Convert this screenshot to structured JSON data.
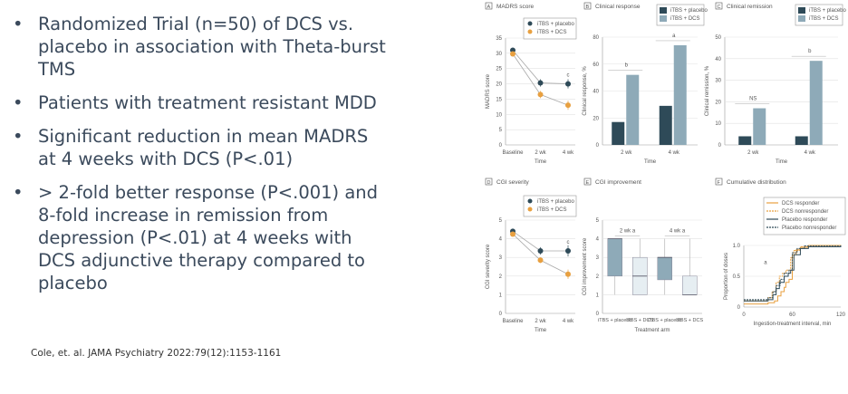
{
  "slide": {
    "bullets": [
      "Randomized Trial (n=50) of DCS vs. placebo in association with Theta-burst TMS",
      "Patients with treatment resistant MDD",
      "Significant reduction in mean MADRS at 4 weeks with DCS (P<.01)",
      "> 2-fold better response (P<.001) and 8-fold increase in remission from depression (P<.01) at 4 weeks with DCS adjunctive therapy compared to placebo"
    ],
    "bullet_glyph": "•",
    "citation": "Cole, et. al. JAMA Psychiatry 2022:79(12):1153-1161"
  },
  "colors": {
    "text": "#3b4a5c",
    "placebo": "#2e4a58",
    "dcs_orange": "#e8a040",
    "dcs_bar": "#8eaab8",
    "dcs_box": "#e6eef2"
  },
  "chart_data": [
    {
      "id": "A",
      "type": "line",
      "panel": "A",
      "title": "MADRS score",
      "xlabel": "Time",
      "ylabel": "MADRS score",
      "ylim": [
        0,
        35
      ],
      "yticks": [
        0,
        5,
        10,
        15,
        20,
        25,
        30,
        35
      ],
      "categories": [
        "Baseline",
        "2 wk",
        "4 wk"
      ],
      "series": [
        {
          "name": "iTBS + placebo",
          "values": [
            31,
            20.3,
            20
          ],
          "err": [
            0.8,
            1.2,
            1.5
          ]
        },
        {
          "name": "iTBS + DCS",
          "values": [
            29.8,
            16.5,
            13
          ],
          "err": [
            0.8,
            1.2,
            1.5
          ]
        }
      ],
      "annotations": [
        {
          "text": "c",
          "category": "4 wk"
        }
      ]
    },
    {
      "id": "B",
      "type": "bar",
      "panel": "B",
      "title": "Clinical response",
      "xlabel": "Time",
      "ylabel": "Clinical response, %",
      "ylim": [
        0,
        80
      ],
      "yticks": [
        0,
        20,
        40,
        60,
        80
      ],
      "categories": [
        "2 wk",
        "4 wk"
      ],
      "series": [
        {
          "name": "iTBS + placebo",
          "values": [
            17,
            29
          ]
        },
        {
          "name": "iTBS + DCS",
          "values": [
            52,
            74
          ]
        }
      ],
      "annotations": [
        {
          "text": "b",
          "category": "2 wk"
        },
        {
          "text": "a",
          "category": "4 wk"
        }
      ]
    },
    {
      "id": "C",
      "type": "bar",
      "panel": "C",
      "title": "Clinical remission",
      "xlabel": "Time",
      "ylabel": "Clinical remission, %",
      "ylim": [
        0,
        50
      ],
      "yticks": [
        0,
        10,
        20,
        30,
        40,
        50
      ],
      "categories": [
        "2 wk",
        "4 wk"
      ],
      "series": [
        {
          "name": "iTBS + placebo",
          "values": [
            4,
            4
          ]
        },
        {
          "name": "iTBS + DCS",
          "values": [
            17,
            39
          ]
        }
      ],
      "annotations": [
        {
          "text": "NS",
          "category": "2 wk"
        },
        {
          "text": "b",
          "category": "4 wk"
        }
      ]
    },
    {
      "id": "D",
      "type": "line",
      "panel": "D",
      "title": "CGI severity",
      "xlabel": "Time",
      "ylabel": "CGI severity score",
      "ylim": [
        0,
        5
      ],
      "yticks": [
        0,
        1,
        2,
        3,
        4,
        5
      ],
      "categories": [
        "Baseline",
        "2 wk",
        "4 wk"
      ],
      "series": [
        {
          "name": "iTBS + placebo",
          "values": [
            4.4,
            3.35,
            3.35
          ],
          "err": [
            0.1,
            0.2,
            0.3
          ]
        },
        {
          "name": "iTBS + DCS",
          "values": [
            4.25,
            2.85,
            2.1
          ],
          "err": [
            0.1,
            0.15,
            0.25
          ]
        }
      ],
      "annotations": [
        {
          "text": "c",
          "category": "4 wk"
        }
      ]
    },
    {
      "id": "E",
      "type": "box",
      "panel": "E",
      "title": "CGI improvement",
      "xlabel": "Treatment arm",
      "ylabel": "CGI improvement score",
      "ylim": [
        0,
        5
      ],
      "yticks": [
        0,
        1,
        2,
        3,
        4,
        5
      ],
      "categories": [
        "iTBS + placebo",
        "iTBS + DCS",
        "iTBS + placebo",
        "iTBS + DCS"
      ],
      "groups": [
        "2 wk",
        "4 wk"
      ],
      "group_marks": [
        "a",
        "a"
      ],
      "boxes": [
        {
          "min": 1,
          "q1": 2,
          "median": 4,
          "q3": 4,
          "max": 4,
          "arm": "placebo"
        },
        {
          "min": 1,
          "q1": 1,
          "median": 2,
          "q3": 3,
          "max": 4,
          "arm": "dcs"
        },
        {
          "min": 1,
          "q1": 1.8,
          "median": 3,
          "q3": 3,
          "max": 4,
          "arm": "placebo"
        },
        {
          "min": 1,
          "q1": 1,
          "median": 1,
          "q3": 2,
          "max": 4,
          "arm": "dcs"
        }
      ]
    },
    {
      "id": "F",
      "type": "line",
      "panel": "F",
      "title": "Cumulative distribution",
      "xlabel": "Ingestion-treatment interval, min",
      "ylabel": "Proportion of doses",
      "xlim": [
        0,
        120
      ],
      "ylim": [
        0,
        1
      ],
      "xticks": [
        0,
        60,
        120
      ],
      "yticks": [
        0,
        0.5,
        1.0
      ],
      "ytick_labels": [
        "0",
        "0.5",
        "1.0"
      ],
      "annotations": [
        {
          "text": "a"
        }
      ],
      "series": [
        {
          "name": "DCS responder",
          "style": "solid-orange",
          "x": [
            0,
            20,
            30,
            38,
            42,
            46,
            50,
            52,
            56,
            60,
            65,
            70,
            80,
            120
          ],
          "y": [
            0.05,
            0.05,
            0.07,
            0.1,
            0.18,
            0.25,
            0.32,
            0.4,
            0.45,
            0.85,
            0.93,
            0.97,
            1.0,
            1.0
          ]
        },
        {
          "name": "DCS nonresponder",
          "style": "dashed-orange",
          "x": [
            0,
            20,
            30,
            35,
            40,
            44,
            48,
            52,
            58,
            62,
            70,
            80,
            120
          ],
          "y": [
            0.1,
            0.1,
            0.15,
            0.25,
            0.4,
            0.5,
            0.55,
            0.6,
            0.8,
            0.92,
            0.98,
            1.0,
            0.98
          ]
        },
        {
          "name": "Placebo responder",
          "style": "solid-dark",
          "x": [
            0,
            20,
            30,
            36,
            40,
            44,
            50,
            55,
            58,
            62,
            70,
            80,
            120
          ],
          "y": [
            0.1,
            0.1,
            0.12,
            0.2,
            0.3,
            0.4,
            0.5,
            0.55,
            0.6,
            0.85,
            0.95,
            0.98,
            1.0
          ]
        },
        {
          "name": "Placebo nonresponder",
          "style": "dashed-dark",
          "x": [
            0,
            20,
            30,
            36,
            40,
            45,
            50,
            56,
            60,
            66,
            75,
            120
          ],
          "y": [
            0.12,
            0.12,
            0.15,
            0.25,
            0.35,
            0.45,
            0.55,
            0.6,
            0.88,
            0.95,
            0.99,
            1.0
          ]
        }
      ]
    }
  ]
}
